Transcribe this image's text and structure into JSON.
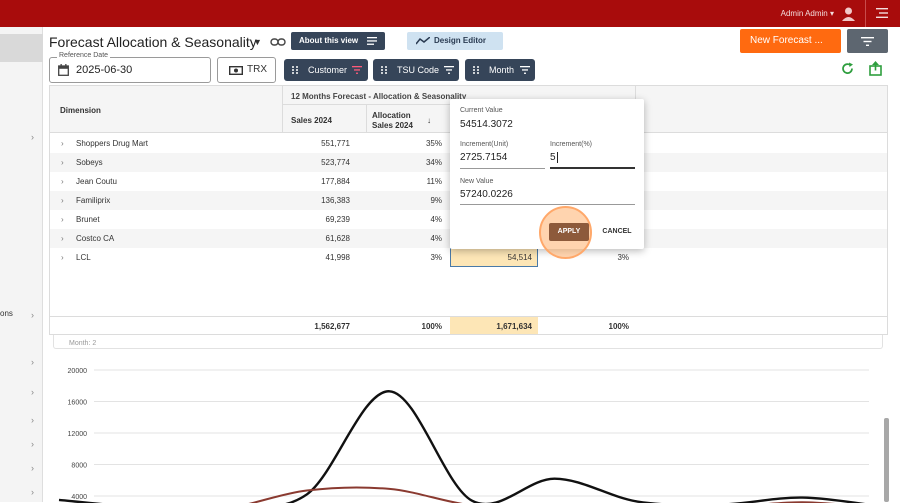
{
  "topbar": {
    "user": "Admin Admin ▾"
  },
  "sidebar": {
    "truncated_label": "ons"
  },
  "header": {
    "title": "Forecast Allocation & Seasonality",
    "about_label": "About this view",
    "design_label": "Design Editor",
    "new_forecast_label": "New Forecast ...",
    "colors": {
      "brand": "#a80c0c",
      "accent": "#ff6a10",
      "dark": "#364559"
    }
  },
  "controls": {
    "ref_date_label": "Reference Date",
    "ref_date_value": "2025-06-30",
    "trx_label": "TRX",
    "dimensions": [
      {
        "label": "Customer"
      },
      {
        "label": "TSU Code"
      },
      {
        "label": "Month"
      }
    ]
  },
  "grid": {
    "dimension_header": "Dimension",
    "group_header": "12 Months Forecast - Allocation & Seasonality",
    "col_sales": "Sales 2024",
    "col_alloc_line1": "Allocation",
    "col_alloc_line2": "Sales 2024",
    "sort_arrow": "↓",
    "rows": [
      {
        "name": "Shoppers Drug Mart",
        "sales": "551,771",
        "alloc": "35%",
        "fc": "",
        "pct": ""
      },
      {
        "name": "Sobeys",
        "sales": "523,774",
        "alloc": "34%",
        "fc": "",
        "pct": ""
      },
      {
        "name": "Jean Coutu",
        "sales": "177,884",
        "alloc": "11%",
        "fc": "",
        "pct": ""
      },
      {
        "name": "Familiprix",
        "sales": "136,383",
        "alloc": "9%",
        "fc": "",
        "pct": ""
      },
      {
        "name": "Brunet",
        "sales": "69,239",
        "alloc": "4%",
        "fc": "",
        "pct": ""
      },
      {
        "name": "Costco CA",
        "sales": "61,628",
        "alloc": "4%",
        "fc": "",
        "pct": ""
      },
      {
        "name": "LCL",
        "sales": "41,998",
        "alloc": "3%",
        "fc": "54,514",
        "pct": "3%"
      }
    ],
    "totals": {
      "sales": "1,562,677",
      "alloc": "100%",
      "fc": "1,671,634",
      "pct": "100%"
    }
  },
  "popup": {
    "current_label": "Current Value",
    "current_value": "54514.3072",
    "inc_unit_label": "Increment(Unit)",
    "inc_unit_value": "2725.7154",
    "inc_pct_label": "Increment(%)",
    "inc_pct_value": "5",
    "new_label": "New Value",
    "new_value": "57240.0226",
    "apply_label": "APPLY",
    "cancel_label": "CANCEL"
  },
  "chart_data": {
    "type": "line",
    "title": "",
    "partial_label": "Month: 2",
    "xlabel": "",
    "ylabel": "",
    "yticks": [
      20000,
      16000,
      12000,
      8000,
      4000
    ],
    "visible_ylim": [
      3000,
      20000
    ],
    "series": [
      {
        "color": "#111111",
        "values": [
          3500,
          2600,
          2700,
          4200,
          17300,
          3400,
          6200,
          3300,
          2900,
          3800,
          2600
        ]
      },
      {
        "color": "#8a3a30",
        "values": [
          2900,
          2300,
          2400,
          4700,
          4900,
          2800,
          2400,
          2300,
          2500,
          3200,
          2400
        ]
      }
    ]
  }
}
